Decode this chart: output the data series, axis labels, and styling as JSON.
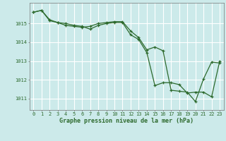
{
  "series1": {
    "x": [
      0,
      1,
      2,
      3,
      4,
      5,
      6,
      7,
      8,
      9,
      10,
      11,
      12,
      13,
      14,
      15,
      16,
      17,
      18,
      19,
      20,
      21,
      22,
      23
    ],
    "y": [
      1015.6,
      1015.7,
      1015.2,
      1015.05,
      1014.9,
      1014.85,
      1014.8,
      1014.85,
      1015.0,
      1015.05,
      1015.1,
      1015.1,
      1014.6,
      1014.25,
      1013.6,
      1013.75,
      1013.55,
      1011.45,
      1011.4,
      1011.35,
      1010.85,
      1012.05,
      1012.95,
      1012.9
    ]
  },
  "series2": {
    "x": [
      0,
      1,
      2,
      3,
      4,
      5,
      6,
      7,
      8,
      9,
      10,
      11,
      12,
      13,
      14,
      15,
      16,
      17,
      18,
      19,
      20,
      21,
      22,
      23
    ],
    "y": [
      1015.6,
      1015.7,
      1015.15,
      1015.05,
      1015.0,
      1014.9,
      1014.85,
      1014.7,
      1014.9,
      1015.0,
      1015.05,
      1015.05,
      1014.4,
      1014.15,
      1013.45,
      1011.7,
      1011.85,
      1011.85,
      1011.75,
      1011.3,
      1011.35,
      1011.35,
      1011.1,
      1013.0
    ]
  },
  "line_color": "#2d6a2d",
  "bg_color": "#cceaea",
  "grid_color": "#ffffff",
  "xlabel": "Graphe pression niveau de la mer (hPa)",
  "ylim": [
    1010.4,
    1016.1
  ],
  "xlim": [
    -0.5,
    23.5
  ],
  "yticks": [
    1011,
    1012,
    1013,
    1014,
    1015
  ],
  "xticks": [
    0,
    1,
    2,
    3,
    4,
    5,
    6,
    7,
    8,
    9,
    10,
    11,
    12,
    13,
    14,
    15,
    16,
    17,
    18,
    19,
    20,
    21,
    22,
    23
  ]
}
